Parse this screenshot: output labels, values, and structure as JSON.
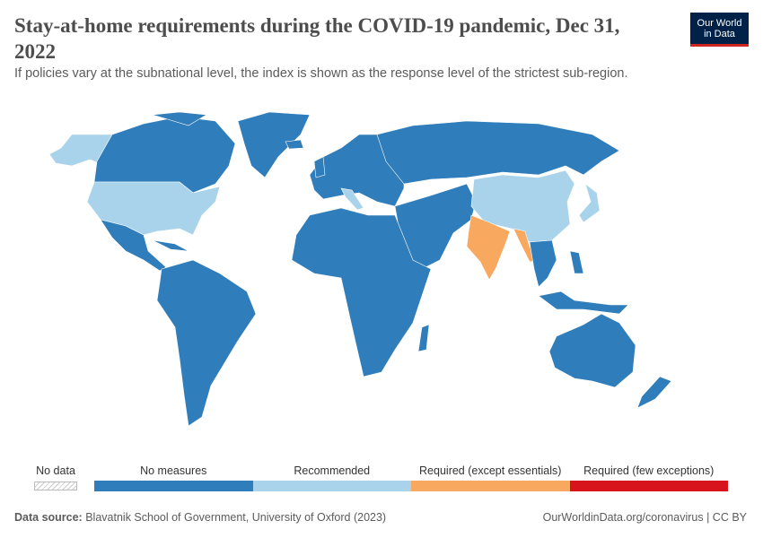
{
  "header": {
    "title": "Stay-at-home requirements during the COVID-19 pandemic, Dec 31, 2022",
    "subtitle": "If policies vary at the subnational level, the index is shown as the response level of the strictest sub-region.",
    "logo": [
      "Our World",
      "in Data"
    ]
  },
  "legend": {
    "no_data": "No data",
    "categories": [
      {
        "label": "No measures",
        "color": "#2f7dba"
      },
      {
        "label": "Recommended",
        "color": "#a9d3ea"
      },
      {
        "label": "Required (except essentials)",
        "color": "#f9a95f"
      },
      {
        "label": "Required (few exceptions)",
        "color": "#d7141c"
      }
    ]
  },
  "footer": {
    "source_label": "Data source:",
    "source": "Blavatnik School of Government, University of Oxford (2023)",
    "url": "OurWorldinData.org/coronavirus | CC BY"
  }
}
